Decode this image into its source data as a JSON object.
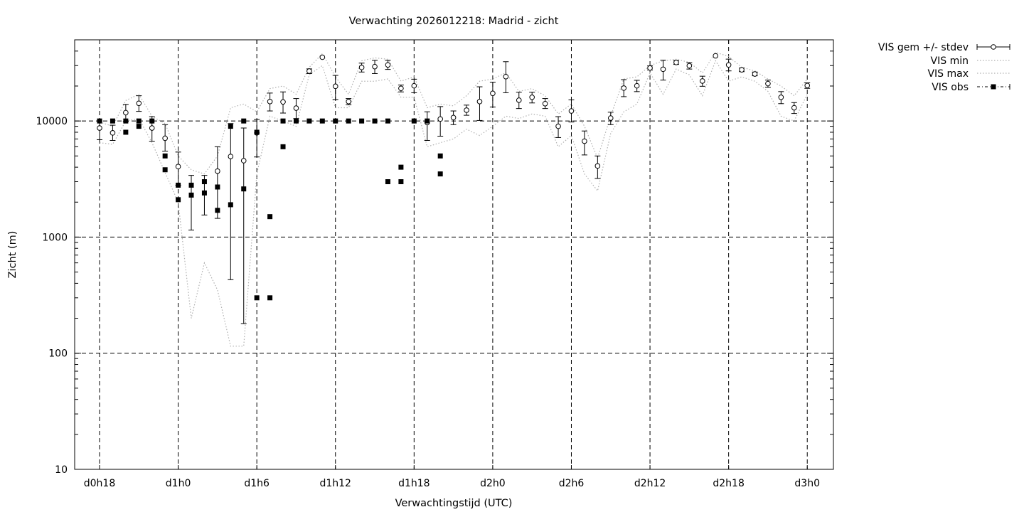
{
  "chart_data": {
    "type": "scatter",
    "title": "Verwachting 2026012218: Madrid - zicht",
    "xlabel": "Verwachtingstijd (UTC)",
    "ylabel": "Zicht (m)",
    "x_unit": "hours since d0h18 (forecast lead offset)",
    "xlim": [
      -1.8,
      56.2
    ],
    "ylim": [
      10,
      50000
    ],
    "y_scale": "log",
    "grid": true,
    "legend_position": "outside-top-right",
    "x_ticks": [
      {
        "x": 0,
        "label": "d0h18"
      },
      {
        "x": 6,
        "label": "d1h0"
      },
      {
        "x": 12,
        "label": "d1h6"
      },
      {
        "x": 18,
        "label": "d1h12"
      },
      {
        "x": 24,
        "label": "d1h18"
      },
      {
        "x": 30,
        "label": "d2h0"
      },
      {
        "x": 36,
        "label": "d2h6"
      },
      {
        "x": 42,
        "label": "d2h12"
      },
      {
        "x": 48,
        "label": "d2h18"
      },
      {
        "x": 54,
        "label": "d3h0"
      }
    ],
    "y_ticks": [
      {
        "y": 10,
        "label": "10"
      },
      {
        "y": 100,
        "label": "100"
      },
      {
        "y": 1000,
        "label": "1000"
      },
      {
        "y": 10000,
        "label": "10000"
      }
    ],
    "x": [
      0,
      1,
      2,
      3,
      4,
      5,
      6,
      7,
      8,
      9,
      10,
      11,
      12,
      13,
      14,
      15,
      16,
      17,
      18,
      19,
      20,
      21,
      22,
      23,
      24,
      25,
      26,
      27,
      28,
      29,
      30,
      31,
      32,
      33,
      34,
      35,
      36,
      37,
      38,
      39,
      40,
      41,
      42,
      43,
      44,
      45,
      46,
      47,
      48,
      49,
      50,
      51,
      52,
      53,
      54
    ],
    "series": [
      {
        "name": "VIS gem +/- stdev",
        "style": "points-errorbars",
        "values": [
          8700,
          7900,
          11800,
          14200,
          8700,
          7100,
          4050,
          null,
          null,
          3700,
          4950,
          4550,
          7900,
          14700,
          14600,
          12900,
          26900,
          35400,
          19900,
          14700,
          28900,
          29400,
          30400,
          19100,
          20100,
          9700,
          10400,
          10700,
          12400,
          14700,
          17300,
          24100,
          15100,
          16000,
          14100,
          9000,
          12200,
          6700,
          4100,
          10600,
          19200,
          20100,
          28600,
          27900,
          31900,
          29900,
          22100,
          36400,
          30400,
          27600,
          25400,
          21000,
          16000,
          13000,
          20200
        ],
        "lower": [
          6900,
          6800,
          9900,
          12100,
          6700,
          5500,
          2800,
          1150,
          1550,
          1450,
          430,
          180,
          4900,
          12200,
          11700,
          10500,
          25600,
          null,
          15300,
          13800,
          26400,
          25600,
          27800,
          17800,
          17500,
          6800,
          7400,
          9300,
          11200,
          10100,
          13200,
          17500,
          12800,
          14300,
          12800,
          7200,
          9800,
          5100,
          3200,
          9300,
          16200,
          17900,
          27500,
          22500,
          30700,
          28000,
          19900,
          null,
          27000,
          26600,
          24500,
          19500,
          14100,
          11600,
          19100
        ],
        "upper": [
          10000,
          9200,
          13900,
          16500,
          10900,
          9300,
          5400,
          3400,
          3400,
          6000,
          9500,
          8700,
          10300,
          17400,
          17800,
          15600,
          28100,
          null,
          24700,
          15600,
          31500,
          33300,
          33300,
          20400,
          22900,
          12000,
          13300,
          12200,
          13700,
          19700,
          21600,
          32400,
          17700,
          17700,
          15600,
          10900,
          15200,
          8200,
          5000,
          11900,
          22700,
          22400,
          29800,
          33400,
          33200,
          31800,
          24300,
          null,
          34100,
          28600,
          26400,
          22500,
          17900,
          14400,
          21300
        ]
      },
      {
        "name": "VIS min",
        "style": "dotted-line",
        "values": [
          6500,
          6300,
          10000,
          10500,
          6500,
          3600,
          2000,
          200,
          600,
          350,
          115,
          115,
          3500,
          11000,
          10000,
          9000,
          25000,
          30000,
          13000,
          13000,
          22000,
          22000,
          23000,
          16000,
          16000,
          6000,
          6500,
          7000,
          8500,
          7500,
          9000,
          11000,
          10500,
          11500,
          11000,
          6000,
          7500,
          3500,
          2500,
          7800,
          12000,
          14000,
          26000,
          17000,
          28000,
          25000,
          16500,
          33000,
          22000,
          24000,
          22000,
          18000,
          11000,
          10000,
          17000
        ]
      },
      {
        "name": "VIS max",
        "style": "dotted-line",
        "values": [
          9800,
          9000,
          15000,
          17000,
          11000,
          9500,
          5000,
          3800,
          3500,
          5000,
          13000,
          14000,
          12000,
          19000,
          20000,
          17000,
          29000,
          38000,
          24000,
          17000,
          33000,
          35000,
          34000,
          22000,
          24000,
          13000,
          14000,
          13500,
          16500,
          22000,
          23000,
          26000,
          18000,
          19000,
          16500,
          11500,
          14000,
          9000,
          4800,
          11000,
          23000,
          24000,
          30000,
          33000,
          34000,
          32000,
          26000,
          39000,
          36000,
          29000,
          27000,
          23000,
          20000,
          16500,
          23000
        ]
      },
      {
        "name": "VIS obs",
        "style": "squares",
        "points": [
          [
            0,
            10000
          ],
          [
            1,
            10000
          ],
          [
            2,
            10000
          ],
          [
            2,
            8000
          ],
          [
            3,
            10000
          ],
          [
            3,
            9000
          ],
          [
            4,
            10000
          ],
          [
            5,
            5000
          ],
          [
            5,
            3800
          ],
          [
            6,
            2800
          ],
          [
            6,
            2100
          ],
          [
            7,
            2800
          ],
          [
            7,
            2300
          ],
          [
            8,
            3000
          ],
          [
            8,
            2400
          ],
          [
            9,
            2700
          ],
          [
            9,
            1700
          ],
          [
            10,
            9000
          ],
          [
            10,
            1900
          ],
          [
            11,
            10000
          ],
          [
            11,
            2600
          ],
          [
            12,
            8000
          ],
          [
            12,
            300
          ],
          [
            13,
            1500
          ],
          [
            13,
            300
          ],
          [
            14,
            10000
          ],
          [
            14,
            6000
          ],
          [
            15,
            10000
          ],
          [
            16,
            10000
          ],
          [
            17,
            10000
          ],
          [
            18,
            10000
          ],
          [
            19,
            10000
          ],
          [
            20,
            10000
          ],
          [
            21,
            10000
          ],
          [
            22,
            10000
          ],
          [
            22,
            3000
          ],
          [
            23,
            4000
          ],
          [
            23,
            3000
          ],
          [
            24,
            10000
          ],
          [
            25,
            10000
          ],
          [
            26,
            5000
          ],
          [
            26,
            3500
          ]
        ]
      }
    ]
  }
}
